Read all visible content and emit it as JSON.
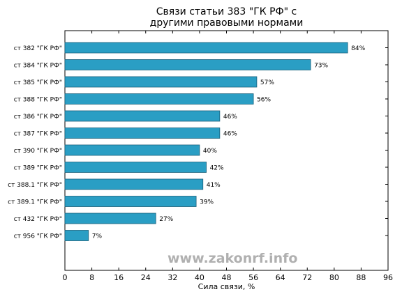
{
  "chart_data": {
    "type": "bar",
    "orientation": "horizontal",
    "title_line1": "Связи статьи 383 \"ГК РФ\" с",
    "title_line2": "другими правовыми нормами",
    "xlabel": "Сила связи, %",
    "ylabel": "",
    "xlim": [
      0,
      96
    ],
    "xticks": [
      0,
      8,
      16,
      24,
      32,
      40,
      48,
      56,
      64,
      72,
      80,
      88,
      96
    ],
    "grid": false,
    "bar_color": "#2a9ec4",
    "categories": [
      "ст 382 \"ГК РФ\"",
      "ст 384 \"ГК РФ\"",
      "ст 385 \"ГК РФ\"",
      "ст 388 \"ГК РФ\"",
      "ст 386 \"ГК РФ\"",
      "ст 387 \"ГК РФ\"",
      "ст 390 \"ГК РФ\"",
      "ст 389 \"ГК РФ\"",
      "ст 388.1 \"ГК РФ\"",
      "ст 389.1 \"ГК РФ\"",
      "ст 432 \"ГК РФ\"",
      "ст 956 \"ГК РФ\""
    ],
    "values": [
      84,
      73,
      57,
      56,
      46,
      46,
      40,
      42,
      41,
      39,
      27,
      7
    ],
    "value_labels": [
      "84%",
      "73%",
      "57%",
      "56%",
      "46%",
      "46%",
      "40%",
      "42%",
      "41%",
      "39%",
      "27%",
      "7%"
    ]
  },
  "watermark": "www.zakonrf.info"
}
